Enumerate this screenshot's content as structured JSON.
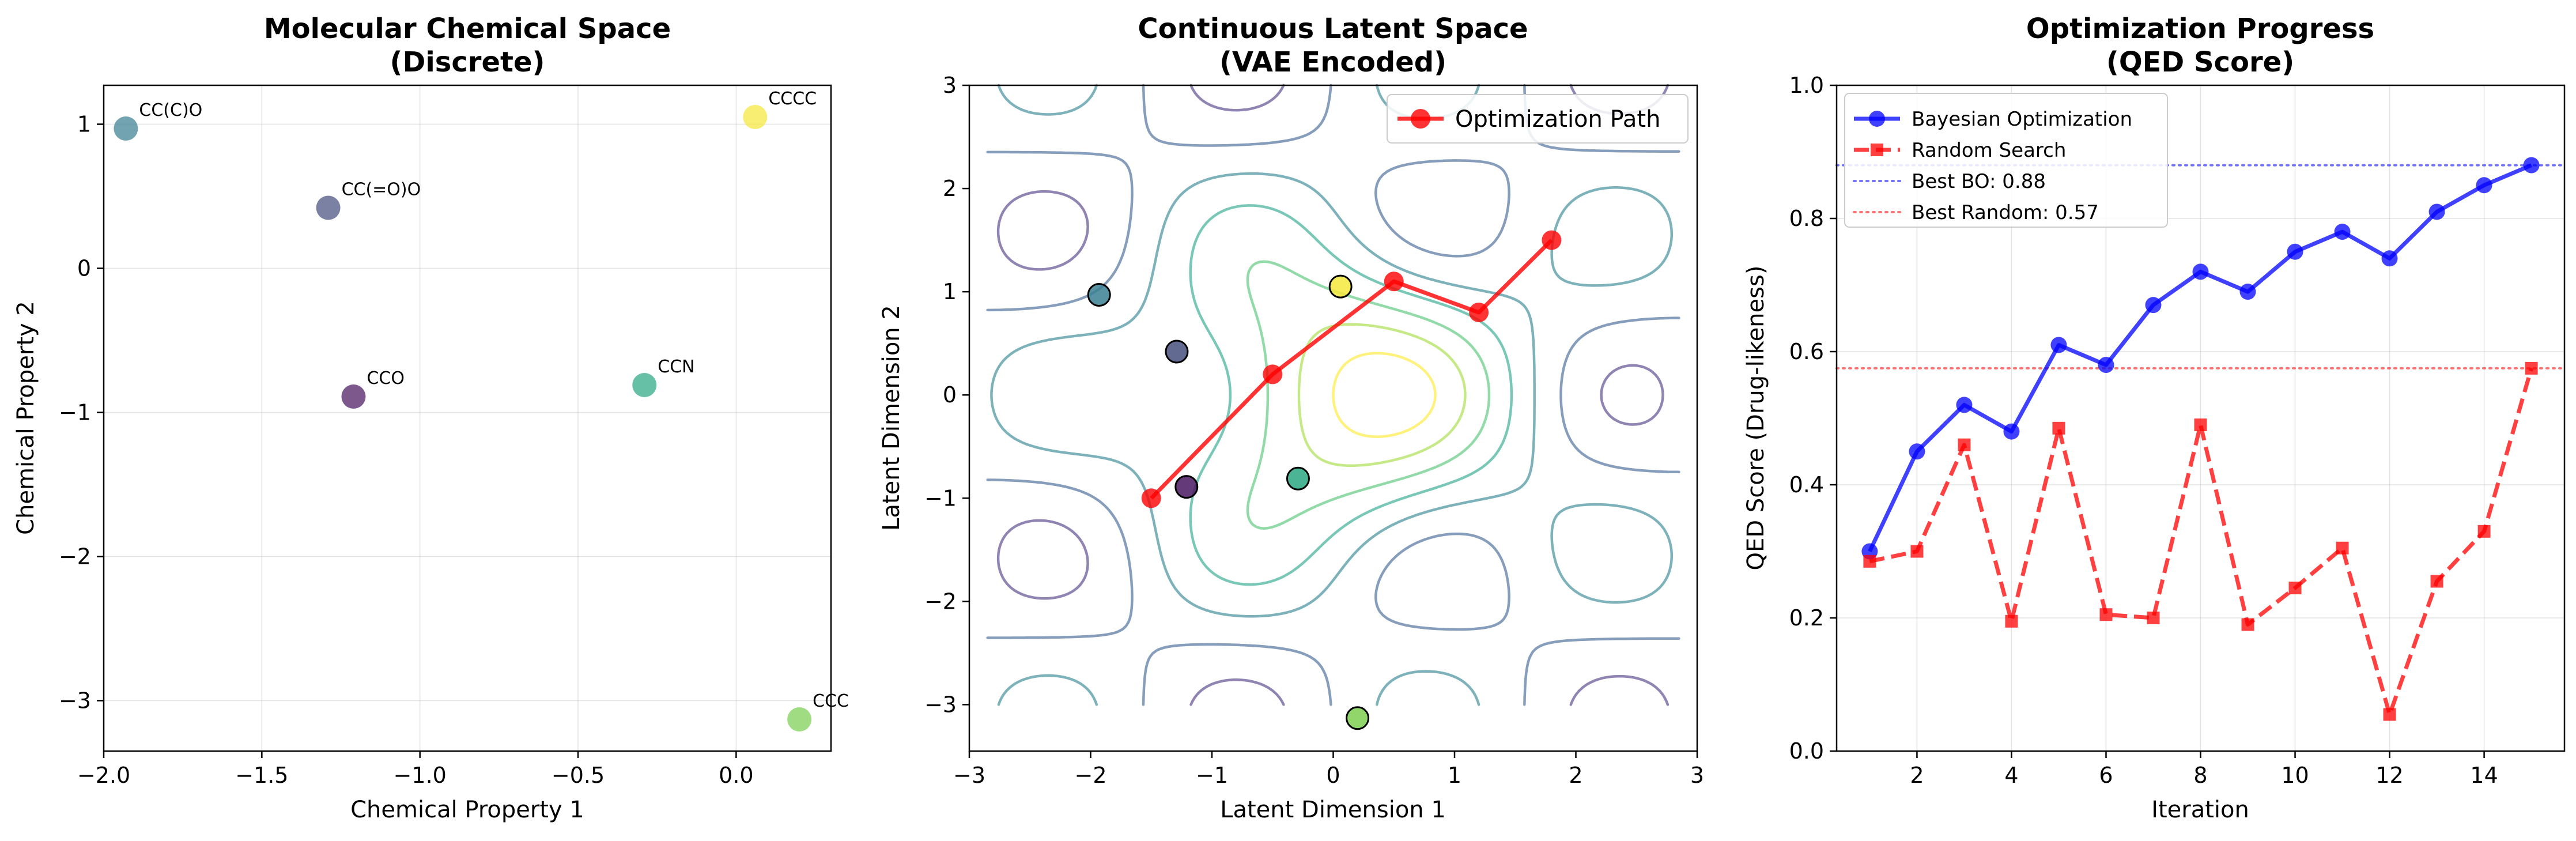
{
  "chart_data": [
    {
      "type": "scatter",
      "title": "Molecular Chemical Space\n(Discrete)",
      "xlabel": "Chemical Property 1",
      "ylabel": "Chemical Property 2",
      "xlim": [
        -2.0,
        0.3
      ],
      "ylim": [
        -3.35,
        1.27
      ],
      "xticks": [
        -2.0,
        -1.5,
        -1.0,
        -0.5,
        0.0
      ],
      "xticklabels": [
        "−2.0",
        "−1.5",
        "−1.0",
        "−0.5",
        "0.0"
      ],
      "yticks": [
        1,
        0,
        -1,
        -2,
        -3
      ],
      "yticklabels": [
        "1",
        "0",
        "−1",
        "−2",
        "−3"
      ],
      "grid": true,
      "points": [
        {
          "label": "CC(C)O",
          "x": -1.93,
          "y": 0.97,
          "color": "#3a8093"
        },
        {
          "label": "CC(=O)O",
          "x": -1.29,
          "y": 0.42,
          "color": "#48507e"
        },
        {
          "label": "CCO",
          "x": -1.21,
          "y": -0.89,
          "color": "#4a1860"
        },
        {
          "label": "CCN",
          "x": -0.29,
          "y": -0.81,
          "color": "#2aa782"
        },
        {
          "label": "CCCC",
          "x": 0.06,
          "y": 1.05,
          "color": "#f4e73b"
        },
        {
          "label": "CCC",
          "x": 0.2,
          "y": -3.13,
          "color": "#7ccf51"
        }
      ]
    },
    {
      "type": "contour",
      "title": "Continuous Latent Space\n(VAE Encoded)",
      "xlabel": "Latent Dimension 1",
      "ylabel": "Latent Dimension 2",
      "xlim": [
        -3,
        3
      ],
      "ylim": [
        -3.45,
        3
      ],
      "xticks": [
        -3,
        -2,
        -1,
        0,
        1,
        2,
        3
      ],
      "xticklabels": [
        "−3",
        "−2",
        "−1",
        "0",
        "1",
        "2",
        "3"
      ],
      "yticks": [
        3,
        2,
        1,
        0,
        -1,
        -2,
        -3
      ],
      "yticklabels": [
        "3",
        "2",
        "1",
        "0",
        "−1",
        "−2",
        "−3"
      ],
      "grid": false,
      "legend": "top-right",
      "series": [
        {
          "name": "Optimization Path",
          "color": "#ff0000",
          "x": [
            -1.5,
            -0.5,
            0.5,
            1.2,
            1.8
          ],
          "y": [
            -1.0,
            0.2,
            1.1,
            0.8,
            1.5
          ]
        }
      ],
      "encoded_points": [
        {
          "x": -1.93,
          "y": 0.97,
          "color": "#3a8093"
        },
        {
          "x": -1.29,
          "y": 0.42,
          "color": "#48507e"
        },
        {
          "x": -1.21,
          "y": -0.89,
          "color": "#4a1860"
        },
        {
          "x": -0.29,
          "y": -0.81,
          "color": "#2aa782"
        },
        {
          "x": 0.06,
          "y": 1.05,
          "color": "#f4e73b"
        },
        {
          "x": 0.2,
          "y": -3.13,
          "color": "#7ccf51"
        }
      ]
    },
    {
      "type": "line",
      "title": "Optimization Progress\n(QED Score)",
      "xlabel": "Iteration",
      "ylabel": "QED Score (Drug-likeness)",
      "xlim": [
        0.3,
        15.7
      ],
      "ylim": [
        0.0,
        1.0
      ],
      "xticks": [
        2,
        4,
        6,
        8,
        10,
        12,
        14
      ],
      "yticks": [
        0.0,
        0.2,
        0.4,
        0.6,
        0.8,
        1.0
      ],
      "yticklabels": [
        "0.0",
        "0.2",
        "0.4",
        "0.6",
        "0.8",
        "1.0"
      ],
      "grid": true,
      "legend": "top-left",
      "x": [
        1,
        2,
        3,
        4,
        5,
        6,
        7,
        8,
        9,
        10,
        11,
        12,
        13,
        14,
        15
      ],
      "series": [
        {
          "name": "Bayesian Optimization",
          "color": "#0000ff",
          "values": [
            0.3,
            0.45,
            0.52,
            0.48,
            0.61,
            0.58,
            0.67,
            0.72,
            0.69,
            0.75,
            0.78,
            0.74,
            0.81,
            0.85,
            0.88
          ]
        },
        {
          "name": "Random Search",
          "color": "#ff0000",
          "values": [
            0.285,
            0.3,
            0.46,
            0.195,
            0.485,
            0.205,
            0.2,
            0.49,
            0.19,
            0.245,
            0.305,
            0.055,
            0.255,
            0.33,
            0.575
          ]
        }
      ],
      "reference_lines": [
        {
          "name": "Best BO: 0.88",
          "y": 0.88,
          "color": "#0000ff"
        },
        {
          "name": "Best Random: 0.57",
          "y": 0.575,
          "color": "#ff0000"
        }
      ]
    }
  ]
}
